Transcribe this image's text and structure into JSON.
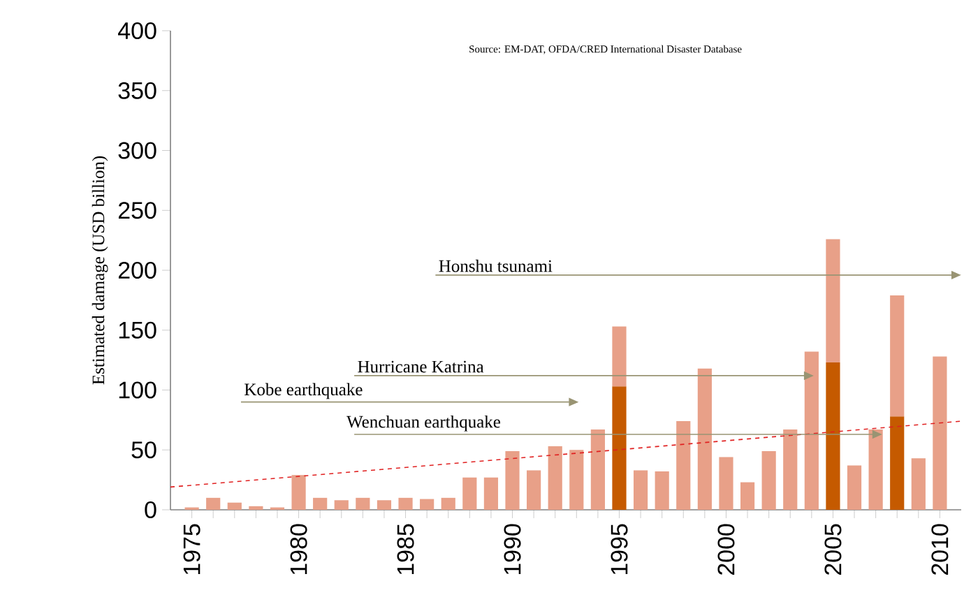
{
  "chart_data": {
    "type": "bar",
    "stacked": true,
    "ylabel": "Estimated damage (USD billion)",
    "x": [
      1975,
      1976,
      1977,
      1978,
      1979,
      1980,
      1981,
      1982,
      1983,
      1984,
      1985,
      1986,
      1987,
      1988,
      1989,
      1990,
      1991,
      1992,
      1993,
      1994,
      1995,
      1996,
      1997,
      1998,
      1999,
      2000,
      2001,
      2002,
      2003,
      2004,
      2005,
      2006,
      2007,
      2008,
      2009,
      2010
    ],
    "series": [
      {
        "color": "#c55a00",
        "values": [
          null,
          null,
          null,
          null,
          null,
          null,
          null,
          null,
          null,
          null,
          null,
          null,
          null,
          null,
          null,
          null,
          null,
          null,
          null,
          null,
          103,
          null,
          null,
          null,
          null,
          null,
          null,
          null,
          null,
          null,
          123,
          null,
          null,
          78,
          null,
          null
        ]
      },
      {
        "color": "#e8a088",
        "values": [
          2,
          10,
          6,
          3,
          2,
          29,
          10,
          8,
          10,
          8,
          10,
          9,
          10,
          27,
          27,
          49,
          33,
          53,
          50,
          67,
          50,
          33,
          32,
          74,
          118,
          44,
          23,
          49,
          67,
          132,
          103,
          37,
          67,
          101,
          43,
          128
        ]
      },
      {
        "type": "line",
        "color": "#e02020",
        "line_style": "dashed",
        "x": [
          1974,
          2011
        ],
        "values": [
          19,
          74
        ]
      }
    ],
    "xlim": [
      1974,
      2011
    ],
    "xticks": [
      1975,
      {
        "value": 1976,
        "label": null
      },
      {
        "value": 1977,
        "label": null
      },
      {
        "value": 1978,
        "label": null
      },
      {
        "value": 1979,
        "label": null
      },
      1980,
      {
        "value": 1981,
        "label": null
      },
      {
        "value": 1982,
        "label": null
      },
      {
        "value": 1983,
        "label": null
      },
      {
        "value": 1984,
        "label": null
      },
      1985,
      {
        "value": 1986,
        "label": null
      },
      {
        "value": 1987,
        "label": null
      },
      {
        "value": 1988,
        "label": null
      },
      {
        "value": 1989,
        "label": null
      },
      1990,
      {
        "value": 1991,
        "label": null
      },
      {
        "value": 1992,
        "label": null
      },
      {
        "value": 1993,
        "label": null
      },
      {
        "value": 1994,
        "label": null
      },
      1995,
      {
        "value": 1996,
        "label": null
      },
      {
        "value": 1997,
        "label": null
      },
      {
        "value": 1998,
        "label": null
      },
      {
        "value": 1999,
        "label": null
      },
      2000,
      {
        "value": 2001,
        "label": null
      },
      {
        "value": 2002,
        "label": null
      },
      {
        "value": 2003,
        "label": null
      },
      {
        "value": 2004,
        "label": null
      },
      2005,
      {
        "value": 2006,
        "label": null
      },
      {
        "value": 2007,
        "label": null
      },
      {
        "value": 2008,
        "label": null
      },
      {
        "value": 2009,
        "label": null
      },
      2010
    ],
    "ylim": [
      0,
      400
    ],
    "yticks": [
      0,
      50,
      100,
      150,
      200,
      250,
      300,
      350,
      400
    ],
    "grid": false,
    "annotations": [
      "Source: EM-DAT, OFDA/CRED International Disaster Database",
      "Honshu tsunami",
      "Hurricane Katrina",
      "Kobe earthquake",
      "Wenchuan earthquake"
    ]
  }
}
